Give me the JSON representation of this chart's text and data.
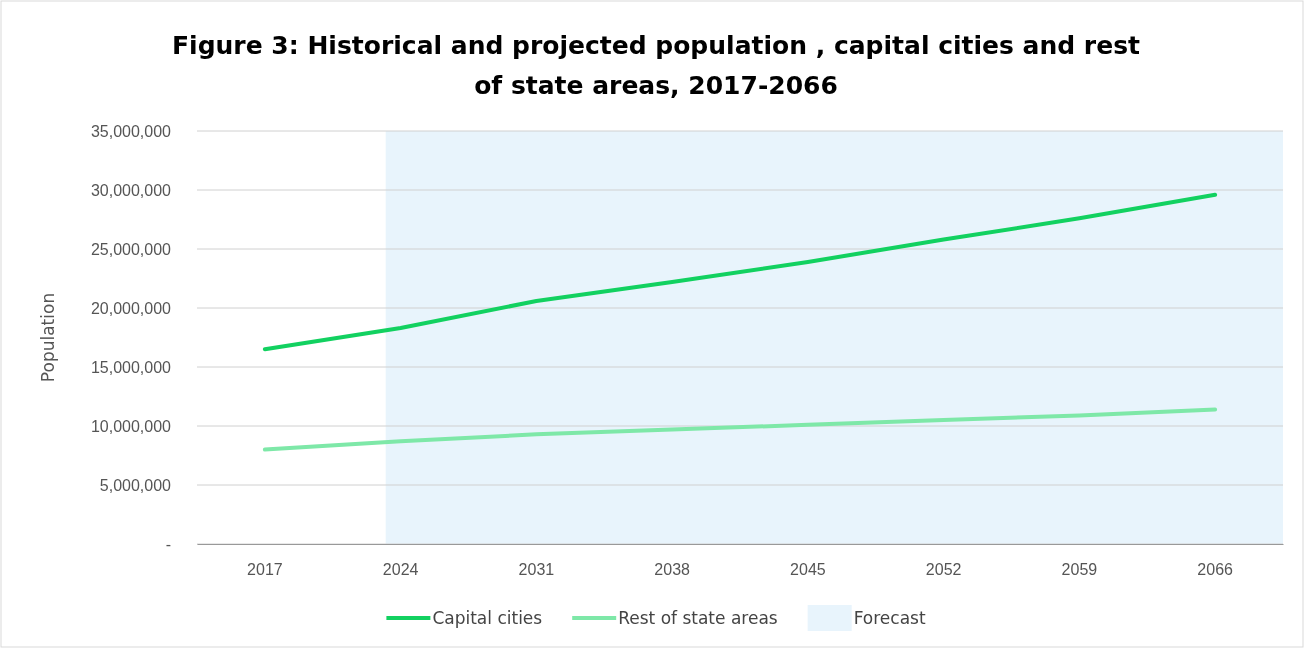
{
  "chart_data": {
    "type": "line",
    "title": "Figure 3: Historical and projected population , capital cities and rest of state areas, 2017-2066",
    "ylabel": "Population",
    "categories": [
      "2017",
      "2024",
      "2031",
      "2038",
      "2045",
      "2052",
      "2059",
      "2066"
    ],
    "series": [
      {
        "name": "Capital cities",
        "color": "#12d160",
        "values": [
          16500000,
          18300000,
          20600000,
          22200000,
          23900000,
          25800000,
          27600000,
          29600000
        ]
      },
      {
        "name": "Rest of state areas",
        "color": "#7ee8a8",
        "values": [
          8000000,
          8700000,
          9300000,
          9700000,
          10100000,
          10500000,
          10900000,
          11400000
        ]
      }
    ],
    "ylim": [
      0,
      35000000
    ],
    "yticks": [
      {
        "value": 0,
        "label": "-"
      },
      {
        "value": 5000000,
        "label": "5,000,000"
      },
      {
        "value": 10000000,
        "label": "10,000,000"
      },
      {
        "value": 15000000,
        "label": "15,000,000"
      },
      {
        "value": 20000000,
        "label": "20,000,000"
      },
      {
        "value": 25000000,
        "label": "25,000,000"
      },
      {
        "value": 30000000,
        "label": "30,000,000"
      },
      {
        "value": 35000000,
        "label": "35,000,000"
      }
    ],
    "grid": "y",
    "legend": "bottom",
    "line_style": "solid",
    "marker": "none",
    "bands": [
      {
        "axis": "x",
        "from": "2024",
        "to": "2066",
        "label": "Forecast",
        "color": "#e8f4fc"
      }
    ]
  }
}
